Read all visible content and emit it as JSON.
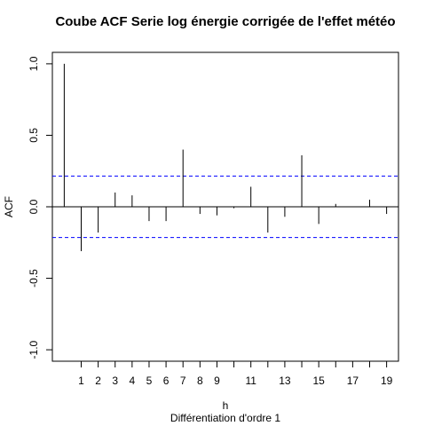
{
  "chart_data": {
    "type": "bar",
    "title": "Coube ACF Serie log énergie corrigée de l'effet météo",
    "xlabel": "h",
    "subtitle": "Différentiation d'ordre 1",
    "ylabel": "ACF",
    "x": [
      0,
      1,
      2,
      3,
      4,
      5,
      6,
      7,
      8,
      9,
      10,
      11,
      12,
      13,
      14,
      15,
      16,
      17,
      18,
      19
    ],
    "values": [
      1.0,
      -0.31,
      -0.18,
      0.1,
      0.08,
      -0.1,
      -0.1,
      0.4,
      -0.05,
      -0.06,
      -0.01,
      0.14,
      -0.18,
      -0.07,
      0.36,
      -0.12,
      0.02,
      0.0,
      0.05,
      -0.05
    ],
    "x_ticks": [
      1,
      2,
      3,
      4,
      5,
      6,
      7,
      8,
      9,
      10,
      11,
      12,
      13,
      14,
      15,
      16,
      17,
      18,
      19
    ],
    "x_tick_labels": [
      "1",
      "2",
      "3",
      "4",
      "5",
      "6",
      "7",
      "8",
      "9",
      "",
      "11",
      "",
      "13",
      "",
      "15",
      "",
      "17",
      "",
      "19"
    ],
    "y_ticks": [
      -1.0,
      -0.5,
      0.0,
      0.5,
      1.0
    ],
    "y_tick_labels": [
      "-1.0",
      "-0.5",
      "0.0",
      "0.5",
      "1.0"
    ],
    "xlim": [
      -0.7,
      19.7
    ],
    "ylim": [
      -1.08,
      1.08
    ],
    "confidence_band": 0.215,
    "confidence_color": "#0000ff",
    "grid": false
  }
}
